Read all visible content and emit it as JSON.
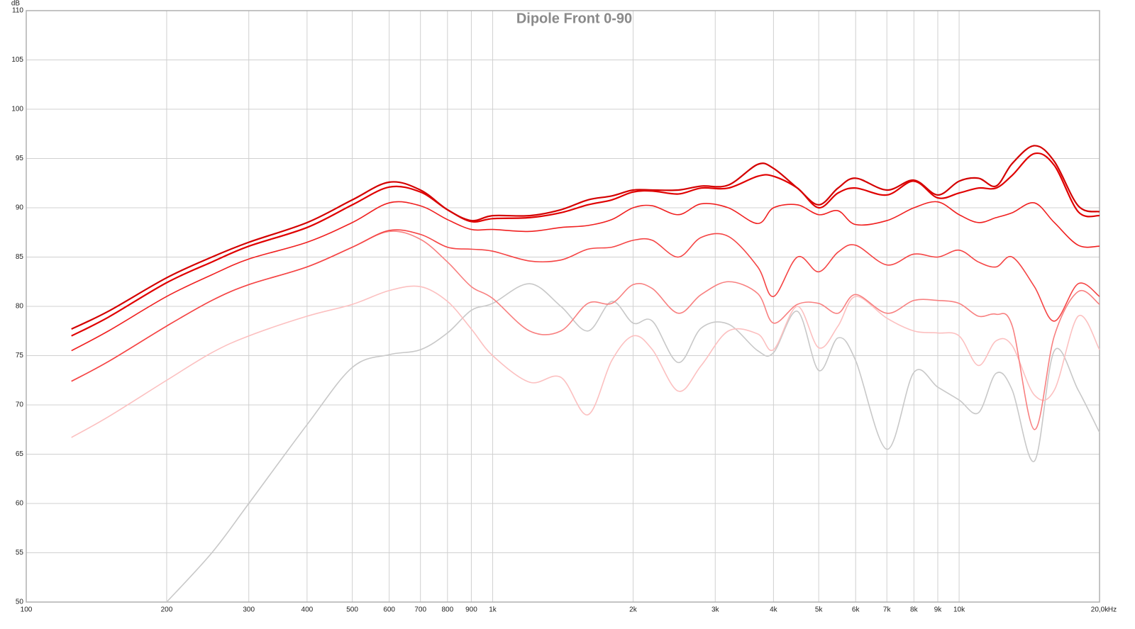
{
  "chart_data": {
    "type": "line",
    "title": "Dipole Front 0-90",
    "y_unit": "dB",
    "x_unit": "Hz",
    "xscale": "log",
    "grid": true,
    "xlim": [
      100,
      20000
    ],
    "ylim": [
      50,
      110
    ],
    "xticks": [
      100,
      200,
      300,
      400,
      500,
      600,
      700,
      800,
      900,
      {
        "value": 1000,
        "label": "1k"
      },
      {
        "value": 2000,
        "label": "2k"
      },
      {
        "value": 3000,
        "label": "3k"
      },
      {
        "value": 4000,
        "label": "4k"
      },
      {
        "value": 5000,
        "label": "5k"
      },
      {
        "value": 6000,
        "label": "6k"
      },
      {
        "value": 7000,
        "label": "7k"
      },
      {
        "value": 8000,
        "label": "8k"
      },
      {
        "value": 9000,
        "label": "9k"
      },
      {
        "value": 10000,
        "label": "10k"
      },
      {
        "value": 20000,
        "label": "20,0k"
      }
    ],
    "yticks": [
      50,
      55,
      60,
      65,
      70,
      75,
      80,
      85,
      90,
      95,
      100,
      105,
      110
    ],
    "x": [
      125,
      150,
      200,
      250,
      300,
      400,
      500,
      600,
      700,
      800,
      900,
      1000,
      1200,
      1400,
      1600,
      1800,
      2000,
      2200,
      2500,
      2800,
      3200,
      3700,
      4000,
      4500,
      5000,
      5500,
      6000,
      7000,
      8000,
      9000,
      10000,
      11000,
      12000,
      13000,
      14500,
      16000,
      18000,
      20000
    ],
    "series": [
      {
        "color": "#d40000",
        "values": [
          77.7,
          79.5,
          82.9,
          85,
          86.5,
          88.5,
          90.8,
          92.6,
          91.8,
          89.8,
          88.7,
          89.2,
          89.2,
          89.8,
          90.8,
          91.2,
          91.8,
          91.8,
          91.8,
          92.2,
          92.3,
          94.4,
          94,
          92,
          90.3,
          92,
          93,
          91.8,
          92.8,
          91.3,
          92.7,
          93,
          92.2,
          94.5,
          96.3,
          94.7,
          90.2,
          89.6
        ]
      },
      {
        "color": "#e00000",
        "values": [
          77,
          78.9,
          82.4,
          84.5,
          86.1,
          88,
          90.3,
          92.1,
          91.6,
          89.8,
          88.6,
          88.9,
          89,
          89.5,
          90.3,
          90.8,
          91.6,
          91.7,
          91.4,
          92,
          92,
          93.2,
          93.2,
          92,
          90,
          91.5,
          92,
          91.3,
          92.7,
          91,
          91.5,
          92,
          92,
          93.3,
          95.5,
          94.3,
          89.6,
          89.2
        ]
      },
      {
        "color": "#f02020",
        "values": [
          75.5,
          77.5,
          81,
          83.2,
          84.8,
          86.5,
          88.5,
          90.5,
          90.2,
          88.8,
          87.8,
          87.8,
          87.6,
          88,
          88.2,
          88.8,
          90,
          90.2,
          89.3,
          90.4,
          90,
          88.4,
          90,
          90.3,
          89.3,
          89.7,
          88.3,
          88.7,
          90,
          90.6,
          89.3,
          88.5,
          89,
          89.5,
          90.5,
          88.5,
          86.2,
          86.1
        ]
      },
      {
        "color": "#f54545",
        "values": [
          72.4,
          74.4,
          78,
          80.6,
          82.2,
          84,
          86,
          87.7,
          87.3,
          86,
          85.8,
          85.6,
          84.6,
          84.7,
          85.8,
          86,
          86.7,
          86.7,
          85,
          87,
          87.1,
          84,
          81,
          85,
          83.5,
          85.5,
          86.2,
          84.2,
          85.3,
          85,
          85.7,
          84.5,
          84,
          85,
          82,
          78.5,
          82.3,
          81
        ]
      },
      {
        "color": "#f88080",
        "values": [
          72.4,
          74.4,
          78,
          80.6,
          82.2,
          84,
          86,
          87.6,
          86.8,
          84.5,
          82,
          80.8,
          77.5,
          77.5,
          80.3,
          80.3,
          82.2,
          81.8,
          79.3,
          81.2,
          82.5,
          81.3,
          78.3,
          80.2,
          80.3,
          79.3,
          81.2,
          79.3,
          80.6,
          80.6,
          80.3,
          79,
          79.2,
          78,
          67.5,
          77,
          81.5,
          80.2
        ]
      },
      {
        "color": "#fcc0c0",
        "values": [
          66.7,
          68.8,
          72.5,
          75.3,
          77,
          79,
          80.2,
          81.6,
          82,
          80.5,
          77.7,
          75,
          72.3,
          72.8,
          69,
          74.5,
          77,
          75.6,
          71.4,
          74,
          77.5,
          77.2,
          75.6,
          80,
          75.8,
          78,
          81,
          78.8,
          77.5,
          77.3,
          77,
          74,
          76.5,
          76,
          71,
          71.5,
          79,
          75.6
        ]
      },
      {
        "color": "#c8c8c8",
        "values": [
          null,
          null,
          50,
          55,
          60,
          68,
          73.8,
          75.1,
          75.6,
          77.3,
          79.6,
          80.3,
          82.3,
          80,
          77.5,
          80.5,
          78.3,
          78.5,
          74.3,
          77.8,
          78.2,
          75.5,
          75.3,
          79.5,
          73.5,
          76.8,
          74.5,
          65.5,
          73.3,
          71.8,
          70.5,
          69.2,
          73.2,
          71.5,
          64.3,
          75.5,
          71.5,
          67.2
        ]
      }
    ]
  }
}
